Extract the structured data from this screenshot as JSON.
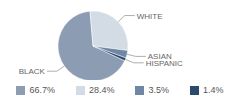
{
  "chart_data": {
    "type": "pie",
    "categories": [
      "BLACK",
      "WHITE",
      "ASIAN",
      "HISPANIC"
    ],
    "values": [
      66.7,
      28.4,
      3.5,
      1.4
    ],
    "value_labels": [
      "66.7%",
      "28.4%",
      "3.5%",
      "1.4%"
    ],
    "colors": [
      "#8c9cb2",
      "#d3dbe5",
      "#6f86a4",
      "#2b4a6e"
    ],
    "legend": "bottom"
  }
}
